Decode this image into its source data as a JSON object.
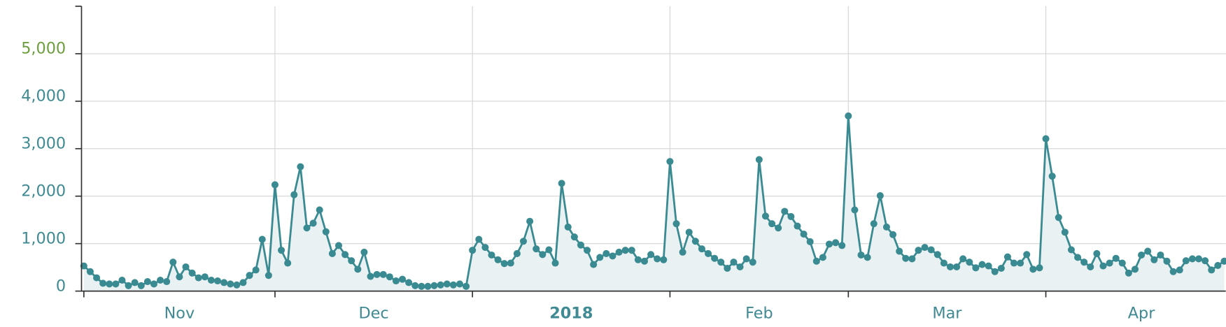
{
  "chart_data": {
    "type": "line",
    "values": [
      530,
      410,
      280,
      165,
      150,
      150,
      230,
      115,
      180,
      115,
      200,
      150,
      230,
      200,
      610,
      300,
      510,
      380,
      280,
      300,
      230,
      215,
      180,
      150,
      130,
      180,
      330,
      445,
      1090,
      330,
      2240,
      860,
      590,
      2030,
      2620,
      1330,
      1430,
      1710,
      1250,
      790,
      960,
      770,
      640,
      460,
      820,
      310,
      350,
      350,
      300,
      215,
      250,
      180,
      115,
      100,
      100,
      115,
      130,
      150,
      130,
      150,
      100,
      860,
      1090,
      920,
      760,
      660,
      580,
      590,
      790,
      1050,
      1470,
      890,
      770,
      870,
      590,
      2270,
      1350,
      1140,
      970,
      860,
      560,
      710,
      790,
      740,
      820,
      860,
      860,
      660,
      630,
      770,
      680,
      660,
      2730,
      1420,
      820,
      1240,
      1050,
      890,
      790,
      690,
      610,
      480,
      610,
      510,
      680,
      610,
      2770,
      1580,
      1420,
      1330,
      1680,
      1570,
      1370,
      1200,
      1040,
      630,
      710,
      990,
      1020,
      960,
      3690,
      1710,
      760,
      710,
      1420,
      2010,
      1350,
      1190,
      840,
      690,
      680,
      860,
      920,
      870,
      770,
      590,
      510,
      510,
      680,
      610,
      490,
      560,
      530,
      410,
      480,
      720,
      590,
      590,
      770,
      460,
      490,
      3210,
      2420,
      1550,
      1240,
      870,
      710,
      610,
      510,
      790,
      530,
      590,
      690,
      590,
      380,
      460,
      760,
      840,
      660,
      760,
      630,
      410,
      445,
      640,
      680,
      680,
      640,
      445,
      540,
      630
    ],
    "color": "#3a8a92",
    "fill_color": "#e9f1f2",
    "xlim": [
      0,
      179
    ],
    "xgrid": [
      0,
      30,
      61,
      92,
      120,
      151
    ],
    "xticks": [
      {
        "value": 15,
        "label": "Nov"
      },
      {
        "value": 45.5,
        "label": "Dec"
      },
      {
        "value": 76.5,
        "label": "2018"
      },
      {
        "value": 106,
        "label": "Feb"
      },
      {
        "value": 135.5,
        "label": "Mar"
      },
      {
        "value": 166,
        "label": "Apr"
      }
    ],
    "ylim": [
      0,
      6000
    ],
    "yticks": [
      0,
      {
        "value": 1000,
        "label": "1,000"
      },
      {
        "value": 2000,
        "label": "2,000"
      },
      {
        "value": 3000,
        "label": "3,000"
      },
      {
        "value": 4000,
        "label": "4,000"
      },
      {
        "value": 5000,
        "label": "5,000"
      }
    ],
    "ytick_colors": [
      "#3f8a93",
      "#3f8a93",
      "#3f8a93",
      "#3f8a93",
      "#3f8a93",
      "#6d9e3f"
    ],
    "grid": true
  }
}
